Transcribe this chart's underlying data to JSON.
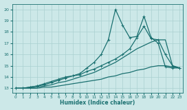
{
  "xlabel": "Humidex (Indice chaleur)",
  "bg_color": "#cce8e8",
  "grid_color": "#aad0d0",
  "line_color": "#1a7070",
  "xlim": [
    -0.5,
    23.5
  ],
  "ylim": [
    12.6,
    20.5
  ],
  "xticks": [
    0,
    1,
    2,
    3,
    4,
    5,
    6,
    7,
    8,
    9,
    10,
    11,
    12,
    13,
    14,
    15,
    16,
    17,
    18,
    19,
    20,
    21,
    22,
    23
  ],
  "yticks": [
    13,
    14,
    15,
    16,
    17,
    18,
    19,
    20
  ],
  "series": [
    {
      "x": [
        0,
        1,
        2,
        3,
        4,
        5,
        6,
        7,
        8,
        9,
        10,
        11,
        12,
        13,
        14,
        15,
        16,
        17,
        18,
        19,
        20,
        21,
        22,
        23
      ],
      "y": [
        13,
        13,
        13.1,
        13.2,
        13.4,
        13.6,
        13.8,
        14.0,
        14.1,
        14.3,
        14.8,
        15.3,
        16.0,
        17.3,
        20.0,
        18.6,
        17.5,
        17.6,
        19.4,
        17.5,
        17.0,
        14.9,
        14.8,
        14.8
      ],
      "marker": "+",
      "markersize": 3,
      "linewidth": 0.9
    },
    {
      "x": [
        0,
        1,
        2,
        3,
        4,
        5,
        6,
        7,
        8,
        9,
        10,
        11,
        12,
        13,
        14,
        15,
        16,
        17,
        18,
        19,
        20,
        21,
        22,
        23
      ],
      "y": [
        13,
        13,
        13.1,
        13.2,
        13.3,
        13.5,
        13.7,
        13.9,
        14.1,
        14.2,
        14.5,
        14.7,
        15.0,
        15.3,
        15.6,
        16.0,
        16.5,
        17.5,
        18.5,
        17.4,
        17.3,
        16.0,
        15.0,
        14.8
      ],
      "marker": "+",
      "markersize": 3,
      "linewidth": 0.9
    },
    {
      "x": [
        0,
        1,
        2,
        3,
        4,
        5,
        6,
        7,
        8,
        9,
        10,
        11,
        12,
        13,
        14,
        15,
        16,
        17,
        18,
        19,
        20,
        21,
        22,
        23
      ],
      "y": [
        13,
        13,
        13.0,
        13.1,
        13.2,
        13.3,
        13.5,
        13.6,
        13.8,
        14.0,
        14.2,
        14.4,
        14.7,
        15.0,
        15.3,
        15.7,
        16.1,
        16.5,
        16.8,
        17.1,
        17.3,
        17.3,
        15.0,
        14.8
      ],
      "marker": null,
      "markersize": 0,
      "linewidth": 0.9
    },
    {
      "x": [
        0,
        1,
        2,
        3,
        4,
        5,
        6,
        7,
        8,
        9,
        10,
        11,
        12,
        13,
        14,
        15,
        16,
        17,
        18,
        19,
        20,
        21,
        22,
        23
      ],
      "y": [
        13,
        13,
        13.0,
        13.0,
        13.1,
        13.1,
        13.2,
        13.3,
        13.4,
        13.5,
        13.6,
        13.7,
        13.8,
        14.0,
        14.1,
        14.3,
        14.4,
        14.6,
        14.7,
        14.9,
        15.0,
        15.0,
        14.9,
        14.8
      ],
      "marker": null,
      "markersize": 0,
      "linewidth": 0.9
    }
  ]
}
